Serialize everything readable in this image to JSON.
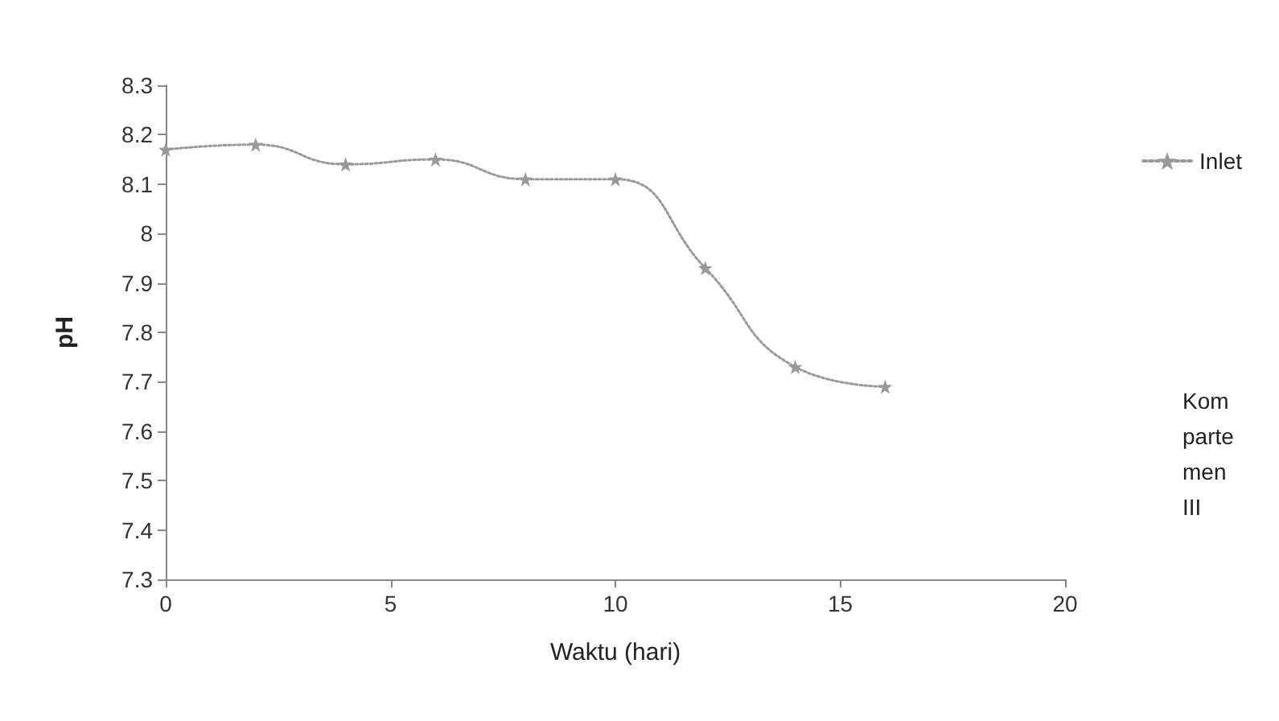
{
  "chart_data": {
    "type": "line",
    "xlabel": "Waktu (hari)",
    "ylabel": "pH",
    "x": [
      0,
      2,
      4,
      6,
      8,
      10,
      12,
      14,
      16
    ],
    "series": [
      {
        "name": "Inlet",
        "color": "#999999",
        "values": [
          8.17,
          8.18,
          8.14,
          8.15,
          8.11,
          8.11,
          7.93,
          7.73,
          7.69
        ]
      }
    ],
    "xlim": [
      0,
      20
    ],
    "xticks": [
      0,
      5,
      10,
      15,
      20
    ],
    "ylim": [
      7.3,
      8.3
    ],
    "yticks": [
      7.3,
      7.4,
      7.5,
      7.6,
      7.7,
      7.8,
      7.9,
      8,
      8.1,
      8.2,
      8.3
    ],
    "grid": false,
    "legend": "top right",
    "marker": "star",
    "line_style": "dotted",
    "annotations": [
      "Kompartemen III"
    ]
  }
}
